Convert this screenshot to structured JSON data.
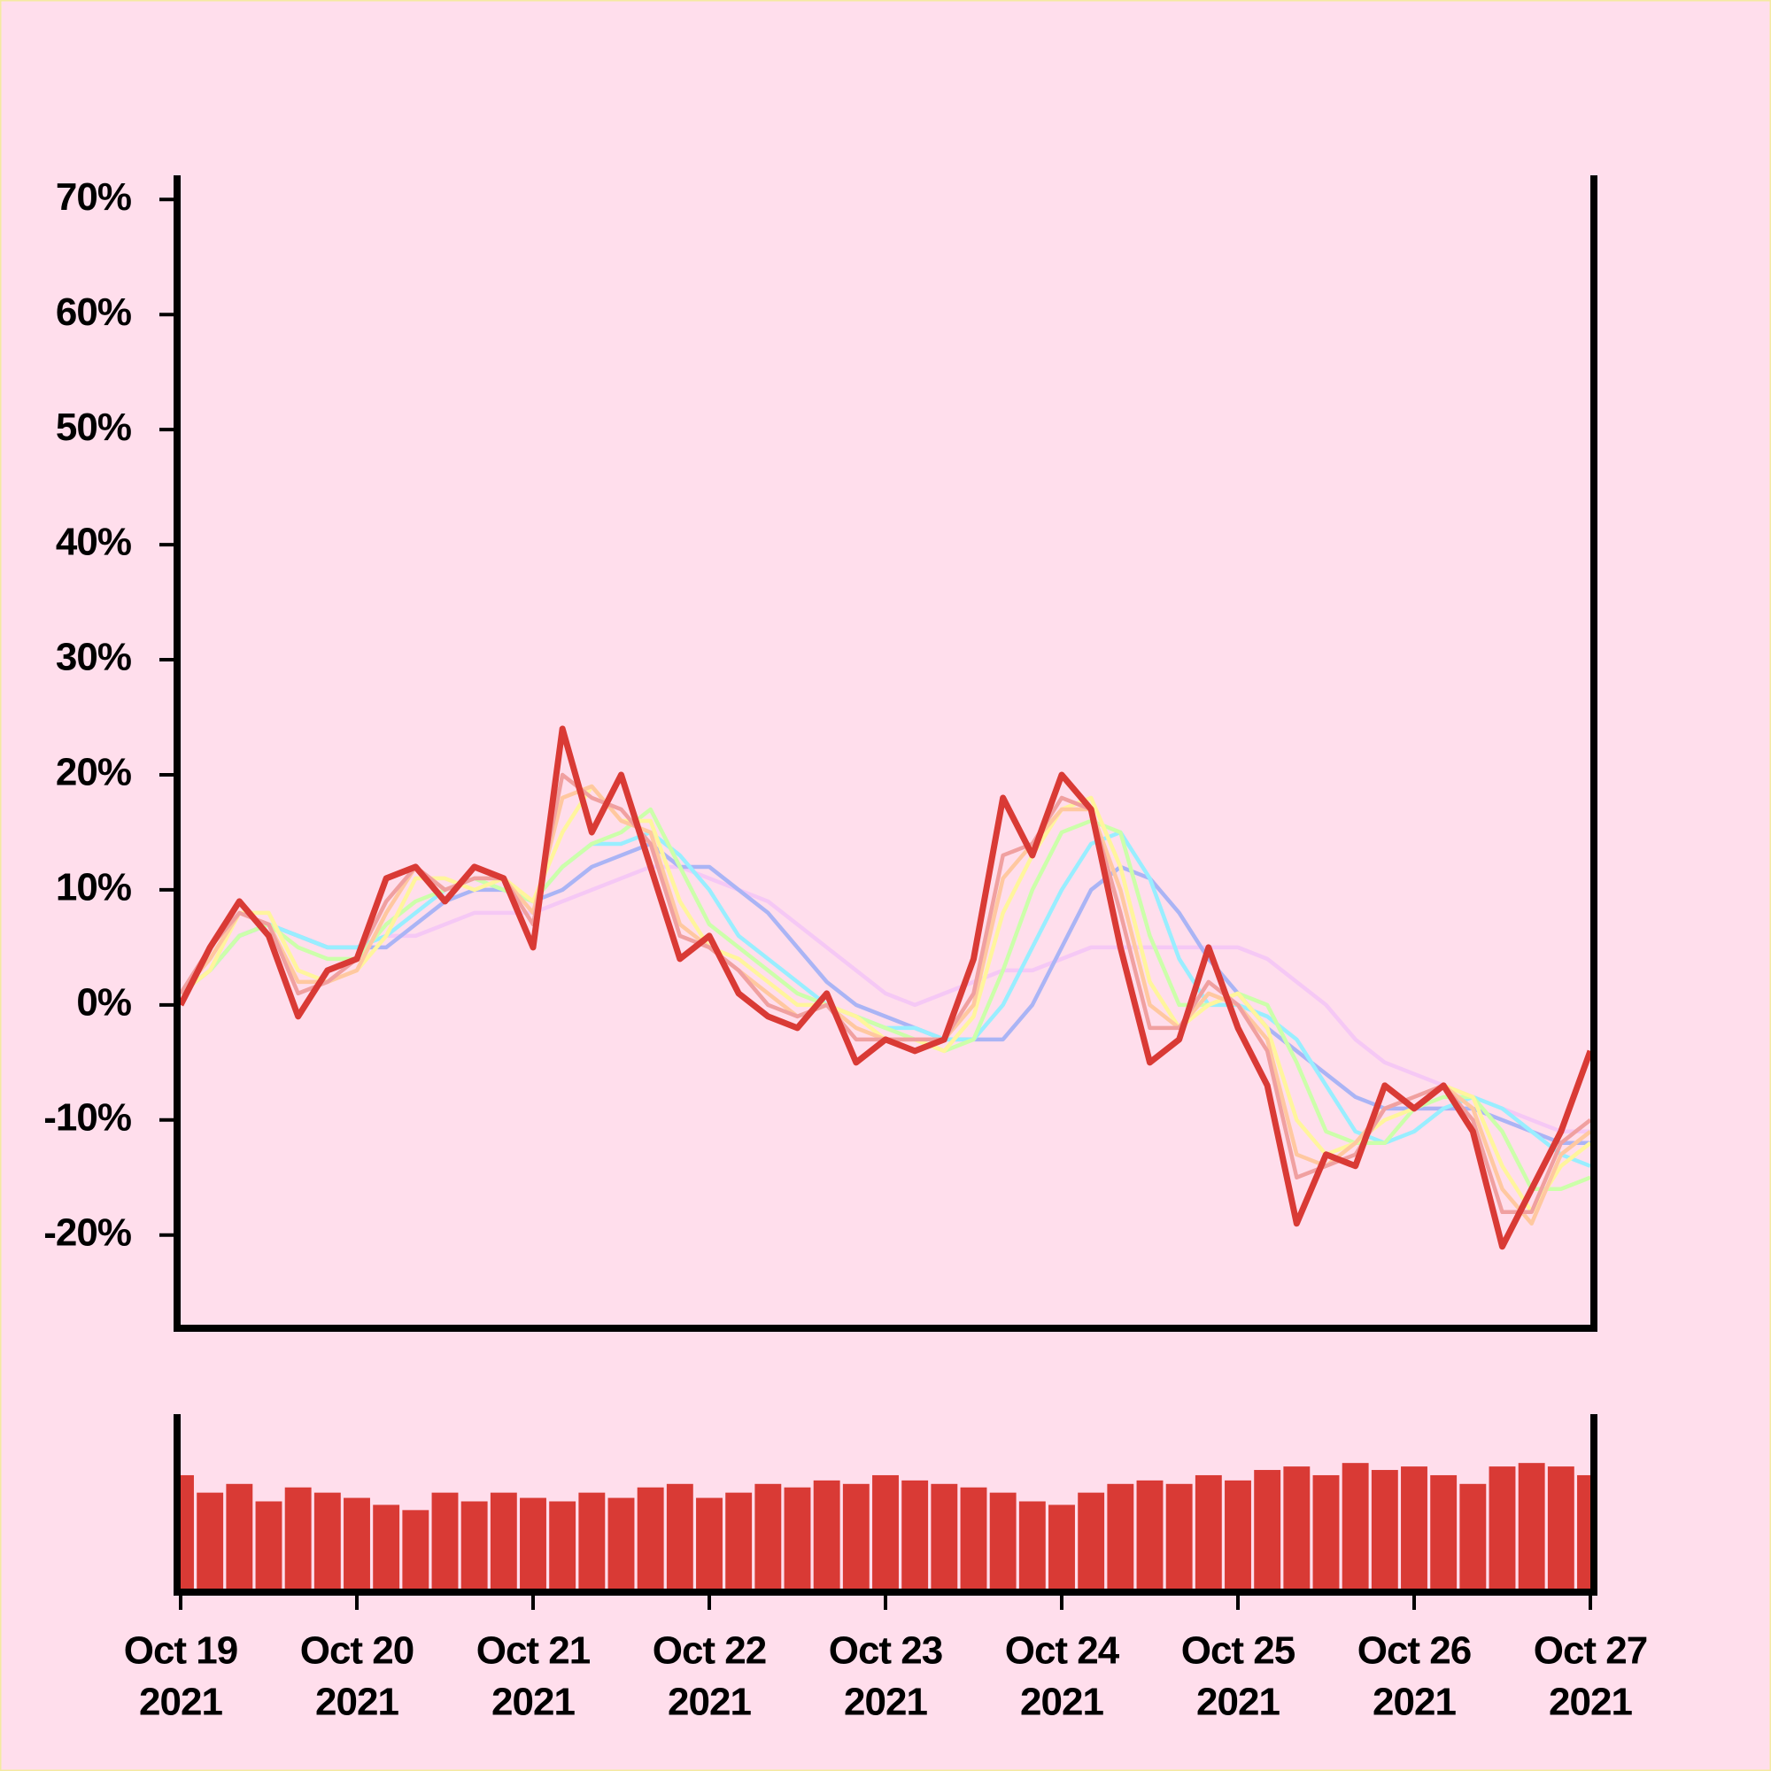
{
  "chart_data": {
    "type": "line",
    "x": [
      "2021-10-19T00:00",
      "2021-10-19T04:00",
      "2021-10-19T08:00",
      "2021-10-19T12:00",
      "2021-10-19T16:00",
      "2021-10-19T20:00",
      "2021-10-20T00:00",
      "2021-10-20T04:00",
      "2021-10-20T08:00",
      "2021-10-20T12:00",
      "2021-10-20T16:00",
      "2021-10-20T20:00",
      "2021-10-21T00:00",
      "2021-10-21T04:00",
      "2021-10-21T08:00",
      "2021-10-21T12:00",
      "2021-10-21T16:00",
      "2021-10-21T20:00",
      "2021-10-22T00:00",
      "2021-10-22T04:00",
      "2021-10-22T08:00",
      "2021-10-22T12:00",
      "2021-10-22T16:00",
      "2021-10-22T20:00",
      "2021-10-23T00:00",
      "2021-10-23T04:00",
      "2021-10-23T08:00",
      "2021-10-23T12:00",
      "2021-10-23T16:00",
      "2021-10-23T20:00",
      "2021-10-24T00:00",
      "2021-10-24T04:00",
      "2021-10-24T08:00",
      "2021-10-24T12:00",
      "2021-10-24T16:00",
      "2021-10-24T20:00",
      "2021-10-25T00:00",
      "2021-10-25T04:00",
      "2021-10-25T08:00",
      "2021-10-25T12:00",
      "2021-10-25T16:00",
      "2021-10-25T20:00",
      "2021-10-26T00:00",
      "2021-10-26T04:00",
      "2021-10-26T08:00",
      "2021-10-26T12:00",
      "2021-10-26T16:00",
      "2021-10-26T20:00",
      "2021-10-27T00:00"
    ],
    "xlim": [
      "2021-10-19T00:00",
      "2021-10-27T00:00"
    ],
    "xticks": [
      {
        "value": "2021-10-19T00:00",
        "label": [
          "Oct 19",
          "2021"
        ]
      },
      {
        "value": "2021-10-20T00:00",
        "label": [
          "Oct 20",
          "2021"
        ]
      },
      {
        "value": "2021-10-21T00:00",
        "label": [
          "Oct 21",
          "2021"
        ]
      },
      {
        "value": "2021-10-22T00:00",
        "label": [
          "Oct 22",
          "2021"
        ]
      },
      {
        "value": "2021-10-23T00:00",
        "label": [
          "Oct 23",
          "2021"
        ]
      },
      {
        "value": "2021-10-24T00:00",
        "label": [
          "Oct 24",
          "2021"
        ]
      },
      {
        "value": "2021-10-25T00:00",
        "label": [
          "Oct 25",
          "2021"
        ]
      },
      {
        "value": "2021-10-26T00:00",
        "label": [
          "Oct 26",
          "2021"
        ]
      },
      {
        "value": "2021-10-27T00:00",
        "label": [
          "Oct 27",
          "2021"
        ]
      }
    ],
    "ylim": [
      -28.1,
      72.1
    ],
    "yticks": [
      {
        "value": 70,
        "label": "70%"
      },
      {
        "value": 60,
        "label": "60%"
      },
      {
        "value": 50,
        "label": "50%"
      },
      {
        "value": 40,
        "label": "40%"
      },
      {
        "value": 30,
        "label": "30%"
      },
      {
        "value": 20,
        "label": "20%"
      },
      {
        "value": 10,
        "label": "10%"
      },
      {
        "value": 0,
        "label": "0%"
      },
      {
        "value": -10,
        "label": "-10%"
      },
      {
        "value": -20,
        "label": "-20%"
      }
    ],
    "series": [
      {
        "color": "#f5c8f5",
        "values": [
          1,
          3,
          6,
          7,
          6,
          5,
          5,
          6,
          6,
          7,
          8,
          8,
          8,
          9,
          10,
          11,
          12,
          12,
          11,
          10,
          9,
          7,
          5,
          3,
          1,
          0,
          1,
          2,
          3,
          3,
          4,
          5,
          5,
          5,
          5,
          5,
          5,
          4,
          2,
          0,
          -3,
          -5,
          -6,
          -7,
          -8,
          -9,
          -10,
          -11,
          -11
        ]
      },
      {
        "color": "#aab4f5",
        "values": [
          1,
          3,
          6,
          7,
          6,
          5,
          5,
          5,
          7,
          9,
          10,
          10,
          9,
          10,
          12,
          13,
          14,
          12,
          12,
          10,
          8,
          5,
          2,
          0,
          -1,
          -2,
          -3,
          -3,
          -3,
          0,
          5,
          10,
          12,
          11,
          8,
          4,
          1,
          -2,
          -4,
          -6,
          -8,
          -9,
          -9,
          -9,
          -9,
          -10,
          -11,
          -12,
          -12
        ]
      },
      {
        "color": "#99eeff",
        "values": [
          1,
          3,
          6,
          7,
          6,
          5,
          5,
          6,
          8,
          10,
          11,
          10,
          9,
          12,
          14,
          14,
          15,
          13,
          10,
          6,
          4,
          2,
          0,
          -1,
          -2,
          -2,
          -3,
          -3,
          0,
          5,
          10,
          14,
          15,
          11,
          4,
          0,
          0,
          -1,
          -3,
          -7,
          -11,
          -12,
          -11,
          -9,
          -8,
          -9,
          -11,
          -13,
          -14
        ]
      },
      {
        "color": "#ccffaa",
        "values": [
          1,
          3,
          6,
          7,
          5,
          4,
          4,
          7,
          9,
          10,
          11,
          10,
          9,
          12,
          14,
          15,
          17,
          12,
          7,
          5,
          3,
          1,
          0,
          -1,
          -2,
          -3,
          -4,
          -3,
          3,
          10,
          15,
          16,
          15,
          6,
          0,
          0,
          1,
          0,
          -5,
          -11,
          -12,
          -12,
          -9,
          -8,
          -8,
          -11,
          -16,
          -16,
          -15
        ]
      },
      {
        "color": "#fff59d",
        "values": [
          1,
          3,
          8,
          8,
          3,
          2,
          3,
          6,
          11,
          11,
          10,
          11,
          9,
          15,
          19,
          16,
          16,
          9,
          5,
          4,
          2,
          0,
          0,
          -1,
          -3,
          -3,
          -4,
          -1,
          8,
          13,
          17,
          18,
          12,
          2,
          -2,
          0,
          1,
          -2,
          -10,
          -13,
          -12,
          -10,
          -9,
          -7,
          -8,
          -14,
          -18,
          -14,
          -12
        ]
      },
      {
        "color": "#ffc8a0",
        "values": [
          1,
          4,
          8,
          7,
          2,
          2,
          3,
          8,
          12,
          10,
          11,
          11,
          8,
          18,
          19,
          16,
          15,
          7,
          5,
          3,
          1,
          -1,
          0,
          -2,
          -3,
          -3,
          -3,
          0,
          11,
          14,
          17,
          17,
          10,
          0,
          -2,
          1,
          0,
          -3,
          -13,
          -14,
          -12,
          -9,
          -8,
          -7,
          -9,
          -16,
          -19,
          -13,
          -11
        ]
      },
      {
        "color": "#f0a0a0",
        "values": [
          1,
          5,
          8,
          7,
          1,
          2,
          4,
          9,
          12,
          10,
          11,
          11,
          7,
          20,
          18,
          17,
          14,
          6,
          5,
          3,
          0,
          -1,
          0,
          -3,
          -3,
          -3,
          -3,
          1,
          13,
          14,
          18,
          17,
          8,
          -2,
          -2,
          2,
          0,
          -4,
          -15,
          -14,
          -13,
          -9,
          -8,
          -7,
          -10,
          -18,
          -18,
          -12,
          -10
        ]
      },
      {
        "color": "#d93a35",
        "values": [
          0,
          5,
          9,
          6,
          -1,
          3,
          4,
          11,
          12,
          9,
          12,
          11,
          5,
          24,
          15,
          20,
          12,
          4,
          6,
          1,
          -1,
          -2,
          1,
          -5,
          -3,
          -4,
          -3,
          4,
          18,
          13,
          20,
          17,
          5,
          -5,
          -3,
          5,
          -2,
          -7,
          -19,
          -13,
          -14,
          -7,
          -9,
          -7,
          -11,
          -21,
          -16,
          -11,
          -4
        ]
      }
    ],
    "volume": {
      "color": "#d93a35",
      "ylim": [
        0,
        100
      ],
      "values": [
        65,
        55,
        60,
        50,
        58,
        55,
        52,
        48,
        45,
        55,
        50,
        55,
        52,
        50,
        55,
        52,
        58,
        60,
        52,
        55,
        60,
        58,
        62,
        60,
        65,
        62,
        60,
        58,
        55,
        50,
        48,
        55,
        60,
        62,
        60,
        65,
        62,
        68,
        70,
        65,
        72,
        68,
        70,
        65,
        60,
        70,
        72,
        70,
        65
      ]
    }
  }
}
